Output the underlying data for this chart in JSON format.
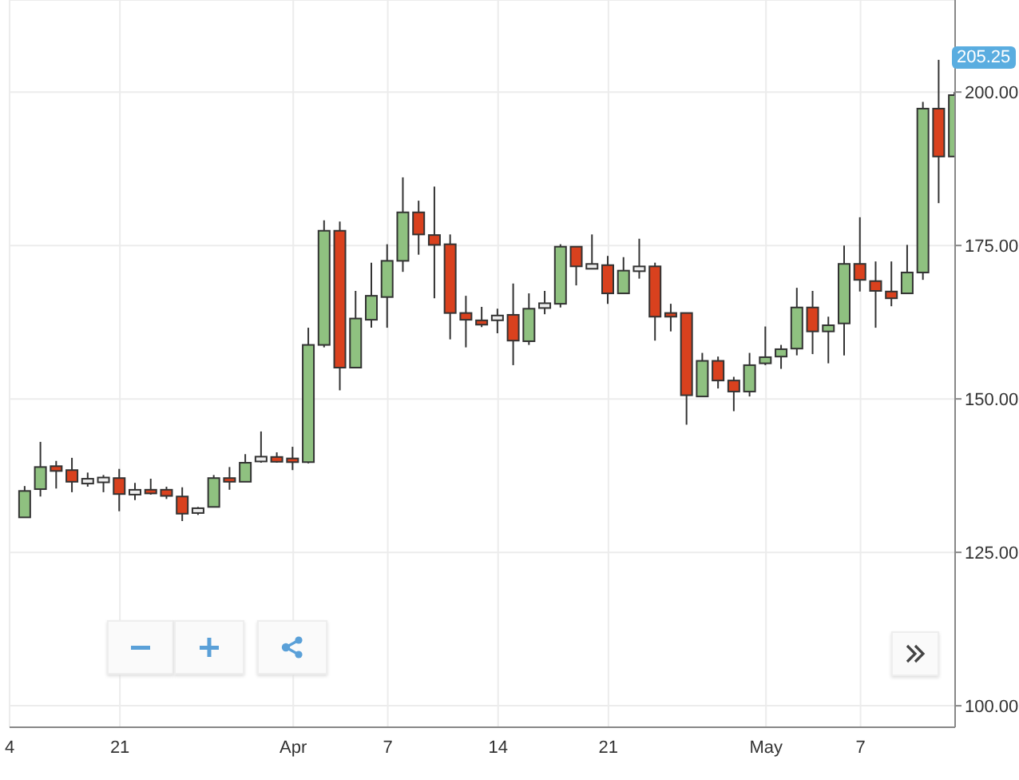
{
  "chart_data": {
    "type": "candlestick",
    "x": [
      "--03-15",
      "--03-16",
      "--03-17",
      "--03-18",
      "--03-19",
      "--03-20",
      "--03-21",
      "--03-22",
      "--03-23",
      "--03-24",
      "--03-25",
      "--03-26",
      "--03-27",
      "--03-28",
      "--03-29",
      "--03-30",
      "--03-31",
      "--04-01",
      "--04-02",
      "--04-03",
      "--04-04",
      "--04-05",
      "--04-06",
      "--04-07",
      "--04-08",
      "--04-09",
      "--04-10",
      "--04-11",
      "--04-12",
      "--04-13",
      "--04-14",
      "--04-15",
      "--04-16",
      "--04-17",
      "--04-18",
      "--04-19",
      "--04-20",
      "--04-21",
      "--04-22",
      "--04-23",
      "--04-24",
      "--04-25",
      "--04-26",
      "--04-27",
      "--04-28",
      "--04-29",
      "--04-30",
      "--05-01",
      "--05-02",
      "--05-03",
      "--05-04",
      "--05-05",
      "--05-06",
      "--05-07",
      "--05-08",
      "--05-09",
      "--05-10",
      "--05-11",
      "--05-12",
      "--05-13"
    ],
    "ohlc": [
      [
        130.7,
        135.8,
        130.7,
        135.0
      ],
      [
        135.3,
        143.0,
        134.1,
        138.9
      ],
      [
        138.9,
        139.9,
        135.4,
        138.4
      ],
      [
        138.4,
        140.4,
        134.8,
        136.5
      ],
      [
        136.6,
        138.0,
        135.7,
        136.6
      ],
      [
        136.8,
        137.6,
        134.8,
        136.8
      ],
      [
        137.1,
        138.6,
        131.7,
        134.5
      ],
      [
        134.8,
        136.3,
        133.5,
        134.8
      ],
      [
        135.2,
        137.0,
        134.4,
        134.6
      ],
      [
        135.2,
        135.7,
        133.7,
        134.2
      ],
      [
        134.1,
        135.6,
        130.1,
        131.3
      ],
      [
        131.8,
        132.4,
        131.1,
        131.8
      ],
      [
        132.4,
        137.6,
        132.4,
        137.1
      ],
      [
        137.1,
        138.9,
        135.2,
        136.5
      ],
      [
        136.5,
        141.0,
        136.5,
        139.6
      ],
      [
        140.2,
        144.7,
        139.6,
        140.2
      ],
      [
        140.4,
        141.3,
        139.6,
        139.9
      ],
      [
        140.3,
        142.2,
        138.4,
        139.7
      ],
      [
        139.7,
        161.6,
        139.5,
        158.8
      ],
      [
        158.8,
        179.1,
        158.4,
        177.4
      ],
      [
        177.4,
        178.9,
        151.4,
        155.1
      ],
      [
        155.1,
        167.6,
        155.1,
        163.1
      ],
      [
        162.9,
        172.2,
        161.6,
        166.8
      ],
      [
        166.6,
        175.2,
        161.6,
        172.5
      ],
      [
        172.5,
        186.1,
        170.7,
        180.4
      ],
      [
        180.4,
        182.3,
        173.5,
        176.8
      ],
      [
        176.7,
        184.6,
        166.4,
        175.1
      ],
      [
        175.2,
        176.8,
        159.7,
        164.0
      ],
      [
        164.0,
        166.8,
        158.4,
        162.9
      ],
      [
        162.8,
        165.0,
        161.7,
        162.1
      ],
      [
        163.2,
        164.7,
        160.7,
        163.2
      ],
      [
        163.7,
        168.8,
        155.5,
        159.5
      ],
      [
        159.4,
        167.2,
        158.8,
        164.7
      ],
      [
        165.2,
        167.6,
        163.8,
        165.2
      ],
      [
        165.5,
        175.2,
        164.9,
        174.8
      ],
      [
        174.8,
        174.8,
        168.5,
        171.6
      ],
      [
        171.6,
        176.8,
        171.4,
        171.6
      ],
      [
        171.8,
        173.3,
        165.5,
        167.2
      ],
      [
        167.2,
        173.1,
        167.2,
        170.9
      ],
      [
        171.2,
        176.1,
        169.6,
        171.2
      ],
      [
        171.6,
        172.2,
        159.5,
        163.4
      ],
      [
        164.0,
        165.5,
        161.0,
        163.4
      ],
      [
        164.0,
        164.0,
        145.8,
        150.6
      ],
      [
        150.4,
        157.5,
        150.4,
        156.2
      ],
      [
        156.2,
        156.9,
        151.7,
        153.0
      ],
      [
        153.0,
        153.6,
        148.0,
        151.2
      ],
      [
        151.2,
        157.5,
        150.4,
        155.5
      ],
      [
        155.8,
        161.8,
        155.5,
        156.8
      ],
      [
        156.9,
        158.8,
        154.9,
        158.1
      ],
      [
        158.2,
        168.1,
        157.1,
        164.9
      ],
      [
        164.9,
        167.6,
        157.3,
        161.0
      ],
      [
        161.0,
        163.4,
        155.8,
        162.0
      ],
      [
        162.3,
        175.0,
        157.1,
        172.0
      ],
      [
        172.0,
        179.6,
        167.5,
        169.4
      ],
      [
        169.2,
        172.4,
        161.6,
        167.6
      ],
      [
        167.5,
        172.4,
        165.1,
        166.4
      ],
      [
        167.2,
        175.1,
        167.2,
        170.6
      ],
      [
        170.6,
        198.4,
        169.4,
        197.3
      ],
      [
        197.3,
        205.25,
        181.9,
        189.5
      ],
      [
        189.5,
        200.0,
        189.5,
        199.5
      ]
    ],
    "colors": [
      "#8fc180",
      "#8fc180",
      "#d9411e",
      "#d9411e",
      "#eeeeee",
      "#eeeeee",
      "#d9411e",
      "#eeeeee",
      "#d9411e",
      "#d9411e",
      "#d9411e",
      "#eeeeee",
      "#8fc180",
      "#d9411e",
      "#8fc180",
      "#eeeeee",
      "#d9411e",
      "#d9411e",
      "#8fc180",
      "#8fc180",
      "#d9411e",
      "#8fc180",
      "#8fc180",
      "#8fc180",
      "#8fc180",
      "#d9411e",
      "#d9411e",
      "#d9411e",
      "#d9411e",
      "#d9411e",
      "#eeeeee",
      "#d9411e",
      "#8fc180",
      "#eeeeee",
      "#8fc180",
      "#d9411e",
      "#eeeeee",
      "#d9411e",
      "#8fc180",
      "#eeeeee",
      "#d9411e",
      "#d9411e",
      "#d9411e",
      "#8fc180",
      "#d9411e",
      "#d9411e",
      "#8fc180",
      "#8fc180",
      "#8fc180",
      "#8fc180",
      "#d9411e",
      "#8fc180",
      "#8fc180",
      "#d9411e",
      "#d9411e",
      "#d9411e",
      "#8fc180",
      "#8fc180",
      "#d9411e",
      "#8fc180"
    ],
    "xlim": [
      "--03-14",
      "--05-13"
    ],
    "xticks": [
      {
        "value": "--03-14",
        "label": "4"
      },
      {
        "value": "--03-21",
        "label": "21"
      },
      {
        "value": "--04-01",
        "label": "Apr"
      },
      {
        "value": "--04-07",
        "label": "7"
      },
      {
        "value": "--04-14",
        "label": "14"
      },
      {
        "value": "--04-21",
        "label": "21"
      },
      {
        "value": "--05-01",
        "label": "May"
      },
      {
        "value": "--05-07",
        "label": "7"
      }
    ],
    "ylim": [
      96.5,
      215
    ],
    "yticks": [
      {
        "value": 100,
        "label": "100.00"
      },
      {
        "value": 125,
        "label": "125.00"
      },
      {
        "value": 150,
        "label": "150.00"
      },
      {
        "value": 175,
        "label": "175.00"
      },
      {
        "value": 200,
        "label": "200.00"
      }
    ],
    "annotations": [
      {
        "text": "205.25",
        "y": 205.25
      }
    ],
    "grid": true
  }
}
